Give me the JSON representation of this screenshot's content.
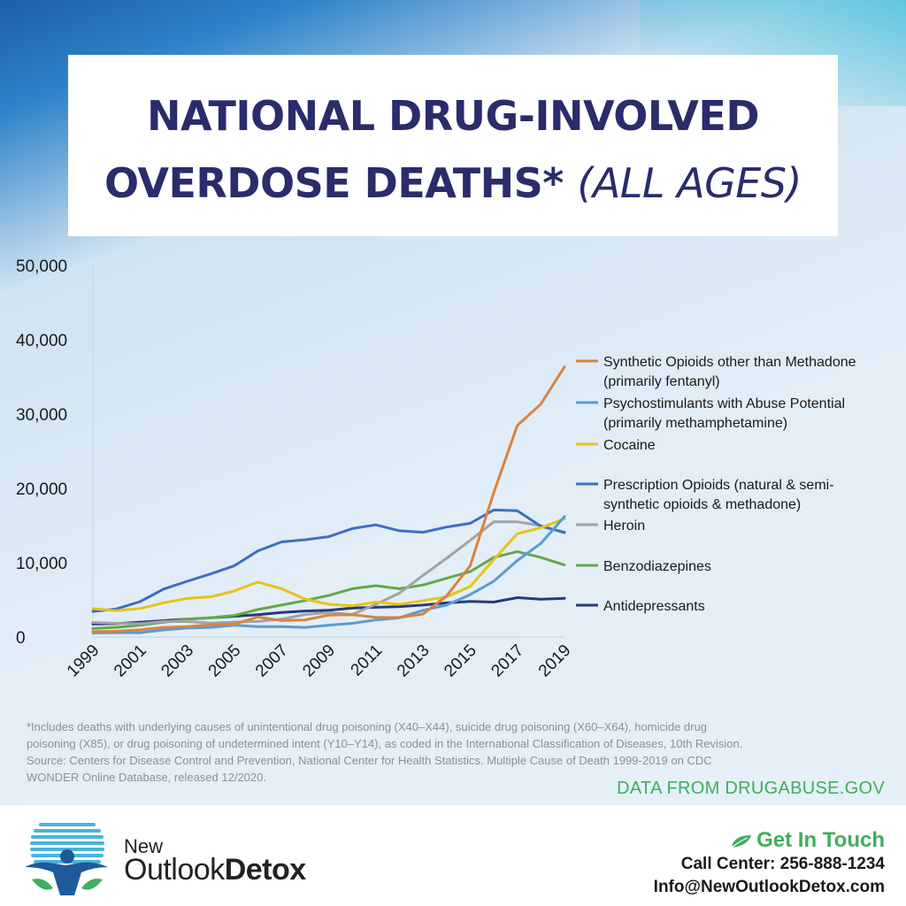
{
  "title": {
    "line1": "NATIONAL DRUG-INVOLVED",
    "line2a": "OVERDOSE DEATHS*",
    "line2b": "(ALL AGES)"
  },
  "colors": {
    "title": "#2a2c6b",
    "accent_green": "#3fae5d"
  },
  "chart_data": {
    "type": "line",
    "title": "",
    "xlabel": "",
    "ylabel": "",
    "x": [
      1999,
      2000,
      2001,
      2002,
      2003,
      2004,
      2005,
      2006,
      2007,
      2008,
      2009,
      2010,
      2011,
      2012,
      2013,
      2014,
      2015,
      2016,
      2017,
      2018,
      2019
    ],
    "x_tick_labels": [
      "1999",
      "2001",
      "2003",
      "2005",
      "2007",
      "2009",
      "2011",
      "2013",
      "2015",
      "2017",
      "2019"
    ],
    "y_ticks": [
      0,
      10000,
      20000,
      30000,
      40000,
      50000
    ],
    "y_tick_labels": [
      "0",
      "10,000",
      "20,000",
      "30,000",
      "40,000",
      "50,000"
    ],
    "ylim": [
      0,
      50000
    ],
    "xlim": [
      1999,
      2019
    ],
    "grid": false,
    "legend_position": "right",
    "series": [
      {
        "name": "Synthetic Opioids other than Methadone",
        "name2": "(primarily fentanyl)",
        "color": "#d9833d",
        "values": [
          730,
          780,
          960,
          1300,
          1400,
          1660,
          1740,
          2700,
          2210,
          2300,
          2950,
          3000,
          2660,
          2630,
          3100,
          5540,
          9580,
          19410,
          28470,
          31340,
          36360
        ]
      },
      {
        "name": "Psychostimulants with Abuse Potential",
        "name2": "(primarily methamphetamine)",
        "color": "#5a9bd3",
        "values": [
          550,
          580,
          580,
          950,
          1200,
          1300,
          1600,
          1400,
          1400,
          1300,
          1600,
          1850,
          2300,
          2600,
          3600,
          4300,
          5700,
          7500,
          10300,
          12600,
          16200
        ]
      },
      {
        "name": "Cocaine",
        "name2": "",
        "color": "#e9c21a",
        "values": [
          3820,
          3540,
          3830,
          4600,
          5200,
          5400,
          6200,
          7400,
          6500,
          5100,
          4400,
          4200,
          4700,
          4400,
          4900,
          5400,
          6800,
          10400,
          13900,
          14700,
          15900
        ]
      },
      {
        "name": "Prescription Opioids (natural & semi-",
        "name2": "synthetic opioids & methadone)",
        "color": "#3d6fc0",
        "values": [
          3440,
          3780,
          4760,
          6450,
          7500,
          8500,
          9600,
          11600,
          12800,
          13100,
          13500,
          14600,
          15100,
          14300,
          14100,
          14800,
          15300,
          17100,
          17000,
          14900,
          14100
        ]
      },
      {
        "name": "Heroin",
        "name2": "",
        "color": "#a3a3a3",
        "values": [
          1960,
          1840,
          1780,
          2090,
          2080,
          1880,
          2010,
          2090,
          2400,
          3040,
          3280,
          3040,
          4400,
          5900,
          8300,
          10600,
          13000,
          15500,
          15500,
          15000,
          14000
        ]
      },
      {
        "name": "Benzodiazepines",
        "name2": "",
        "color": "#63a84a",
        "values": [
          1140,
          1300,
          1600,
          2000,
          2400,
          2600,
          2900,
          3700,
          4300,
          4900,
          5600,
          6500,
          6900,
          6500,
          7000,
          7900,
          8800,
          10700,
          11500,
          10700,
          9700
        ]
      },
      {
        "name": "Antidepressants",
        "name2": "",
        "color": "#253b7a",
        "values": [
          1750,
          1800,
          2000,
          2200,
          2400,
          2600,
          2800,
          3000,
          3300,
          3500,
          3600,
          3900,
          4000,
          4100,
          4300,
          4600,
          4800,
          4700,
          5300,
          5100,
          5200
        ]
      }
    ]
  },
  "footnote": {
    "line1": "*Includes deaths with underlying causes of unintentional drug poisoning (X40–X44), suicide drug poisoning (X60–X64), homicide drug",
    "line2": "poisoning (X85), or drug poisoning of undetermined intent (Y10–Y14), as coded in the International Classification of Diseases, 10th Revision.",
    "line3": "Source: Centers for Disease Control and Prevention, National Center for Health Statistics. Multiple Cause of Death 1999-2019 on CDC",
    "line4": "WONDER Online Database, released 12/2020."
  },
  "data_from": "DATA FROM DRUGABUSE.GOV",
  "brand": {
    "new": "New",
    "outlook": "Outlook",
    "detox": "Detox"
  },
  "contact": {
    "get_in_touch": "Get In Touch",
    "phone": "Call Center: 256-888-1234",
    "email": "Info@NewOutlookDetox.com"
  }
}
